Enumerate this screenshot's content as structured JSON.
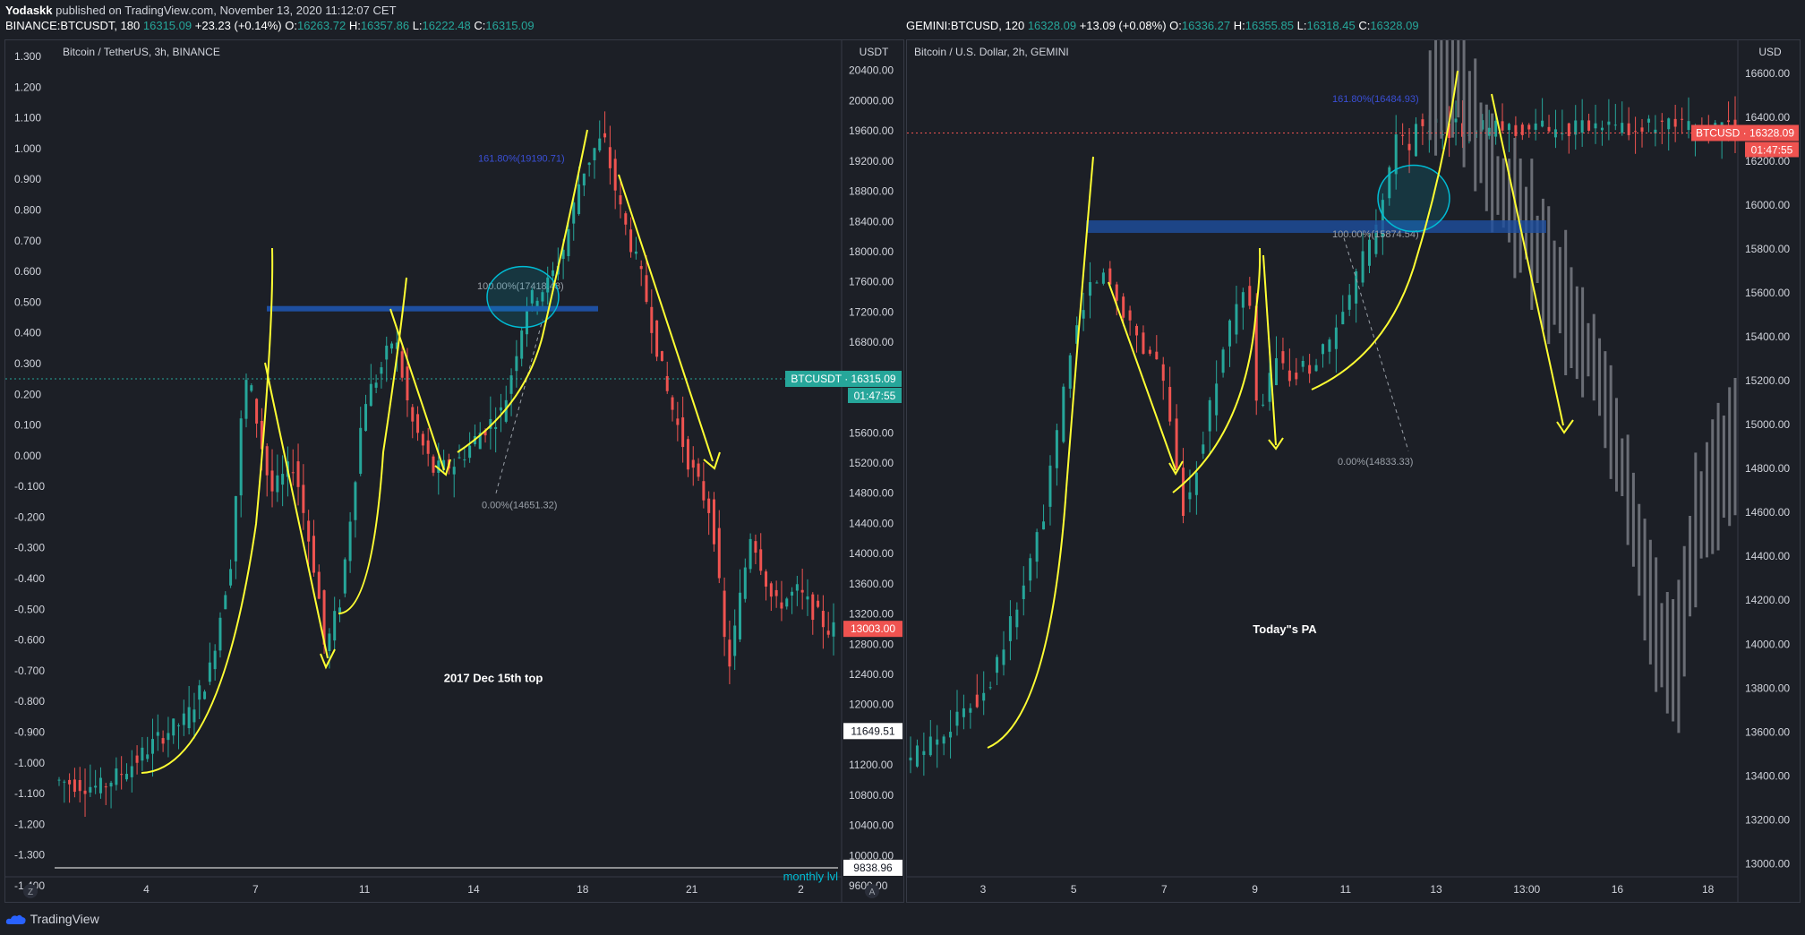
{
  "header": {
    "published_by": "Yodaskk",
    "published_text": "published on TradingView.com, November 13, 2020 11:12:07 CET",
    "left_symbol": "BINANCE:BTCUSDT, 180",
    "left_price": "16315.09",
    "left_change": "+23.23 (+0.14%)",
    "left_o": "16263.72",
    "left_h": "16357.86",
    "left_l": "16222.48",
    "left_c": "16315.09",
    "right_symbol": "GEMINI:BTCUSD, 120",
    "right_price": "16328.09",
    "right_change": "+13.09 (+0.08%)",
    "right_o": "16336.27",
    "right_h": "16355.85",
    "right_l": "16318.45",
    "right_c": "16328.09",
    "o_label": "O:",
    "h_label": "H:",
    "l_label": "L:",
    "c_label": "C:"
  },
  "footer": {
    "brand": "TradingView"
  },
  "colors": {
    "up": "#26a69a",
    "down": "#ef5350",
    "yellow": "#ffff33",
    "fib": "#3a4fd6",
    "band": "#1e4fa0",
    "ghost": "#6a6d75",
    "cyan": "#00bcd4"
  },
  "chart_data": [
    {
      "type": "candlestick",
      "title": "Bitcoin / TetherUS, 3h, BINANCE",
      "price_unit": "USDT",
      "ylim": [
        9600,
        20800
      ],
      "y_ticks": [
        "20400.00",
        "20000.00",
        "19600.00",
        "19200.00",
        "18800.00",
        "18400.00",
        "18000.00",
        "17600.00",
        "17200.00",
        "16800.00",
        "15600.00",
        "15200.00",
        "14800.00",
        "14400.00",
        "14000.00",
        "13600.00",
        "13200.00",
        "12800.00",
        "12400.00",
        "12000.00",
        "11200.00",
        "10800.00",
        "10400.00",
        "10000.00",
        "9600.00"
      ],
      "left_scale_ticks": [
        "1.300",
        "1.200",
        "1.100",
        "1.000",
        "0.900",
        "0.800",
        "0.700",
        "0.600",
        "0.500",
        "0.400",
        "0.300",
        "0.200",
        "0.100",
        "0.000",
        "-0.100",
        "-0.200",
        "-0.300",
        "-0.400",
        "-0.500",
        "-0.600",
        "-0.700",
        "-0.800",
        "-0.900",
        "-1.000",
        "-1.100",
        "-1.200",
        "-1.300",
        "-1.400"
      ],
      "x_ticks": [
        "4",
        "7",
        "11",
        "14",
        "18",
        "21",
        "2"
      ],
      "corner_left": "Z",
      "corner_right": "A",
      "price_tags": {
        "last": "BTCUSDT · 16315.09",
        "countdown": "01:47:55",
        "red": "13003.00",
        "white1": "11649.51",
        "white2": "9838.96"
      },
      "annotations": {
        "fib_top": "161.80%(19190.71)",
        "fib_mid": "100.00%(17418.48)",
        "fib_bottom": "0.00%(14651.32)",
        "note": "2017 Dec 15th top",
        "monthly": "monthly lvl"
      },
      "price_path": [
        [
          0,
          11000
        ],
        [
          6,
          10900
        ],
        [
          10,
          11200
        ],
        [
          14,
          11600
        ],
        [
          17,
          11800
        ],
        [
          20,
          12400
        ],
        [
          23,
          14000
        ],
        [
          24,
          15600
        ],
        [
          25,
          16400
        ],
        [
          28,
          14800
        ],
        [
          31,
          15200
        ],
        [
          34,
          13600
        ],
        [
          35,
          12700
        ],
        [
          37,
          13400
        ],
        [
          40,
          16000
        ],
        [
          42,
          16400
        ],
        [
          44,
          16900
        ],
        [
          46,
          15800
        ],
        [
          49,
          15100
        ],
        [
          52,
          15200
        ],
        [
          55,
          15600
        ],
        [
          58,
          15900
        ],
        [
          61,
          17300
        ],
        [
          62,
          17400
        ],
        [
          64,
          17600
        ],
        [
          66,
          18100
        ],
        [
          68,
          19000
        ],
        [
          70,
          19400
        ],
        [
          71,
          19500
        ],
        [
          73,
          18600
        ],
        [
          76,
          17600
        ],
        [
          79,
          16200
        ],
        [
          82,
          15200
        ],
        [
          85,
          14500
        ],
        [
          87,
          12400
        ],
        [
          90,
          14300
        ],
        [
          93,
          13300
        ],
        [
          96,
          13500
        ],
        [
          100,
          13000
        ]
      ]
    },
    {
      "type": "candlestick",
      "title": "Bitcoin / U.S. Dollar, 2h, GEMINI",
      "price_unit": "USD",
      "ylim": [
        12900,
        16750
      ],
      "y_ticks": [
        "16600.00",
        "16400.00",
        "16200.00",
        "16000.00",
        "15800.00",
        "15600.00",
        "15400.00",
        "15200.00",
        "15000.00",
        "14800.00",
        "14600.00",
        "14400.00",
        "14200.00",
        "14000.00",
        "13800.00",
        "13600.00",
        "13400.00",
        "13200.00",
        "13000.00"
      ],
      "x_ticks": [
        "3",
        "5",
        "7",
        "9",
        "11",
        "13",
        "13:00",
        "16",
        "18"
      ],
      "price_tags": {
        "last": "BTCUSD · 16328.09",
        "countdown": "01:47:55"
      },
      "annotations": {
        "fib_top": "161.80%(16484.93)",
        "fib_mid": "100.00%(15874.54)",
        "fib_bottom": "0.00%(14833.33)",
        "note": "Today\"s PA"
      },
      "price_path": [
        [
          0,
          13450
        ],
        [
          6,
          13650
        ],
        [
          10,
          13800
        ],
        [
          14,
          14200
        ],
        [
          17,
          14600
        ],
        [
          20,
          15300
        ],
        [
          22,
          15600
        ],
        [
          24,
          15700
        ],
        [
          27,
          15500
        ],
        [
          29,
          15350
        ],
        [
          31,
          15300
        ],
        [
          33,
          14800
        ],
        [
          34,
          14600
        ],
        [
          36,
          14900
        ],
        [
          39,
          15400
        ],
        [
          41,
          15600
        ],
        [
          42,
          15500
        ],
        [
          43,
          15000
        ],
        [
          45,
          15300
        ],
        [
          47,
          15200
        ],
        [
          50,
          15300
        ],
        [
          53,
          15450
        ],
        [
          55,
          15700
        ],
        [
          57,
          15850
        ],
        [
          59,
          16150
        ],
        [
          60,
          16400
        ],
        [
          61,
          16200
        ],
        [
          62,
          16350
        ]
      ],
      "ghost_path": [
        [
          63,
          16500
        ],
        [
          65,
          16650
        ],
        [
          67,
          16550
        ],
        [
          69,
          16300
        ],
        [
          71,
          16100
        ],
        [
          73,
          16000
        ],
        [
          75,
          15900
        ],
        [
          77,
          15700
        ],
        [
          79,
          15600
        ],
        [
          81,
          15400
        ],
        [
          83,
          15300
        ],
        [
          85,
          15000
        ],
        [
          87,
          14700
        ],
        [
          89,
          14300
        ],
        [
          91,
          14000
        ],
        [
          93,
          13900
        ],
        [
          95,
          14500
        ],
        [
          97,
          14700
        ],
        [
          100,
          14900
        ]
      ]
    }
  ]
}
